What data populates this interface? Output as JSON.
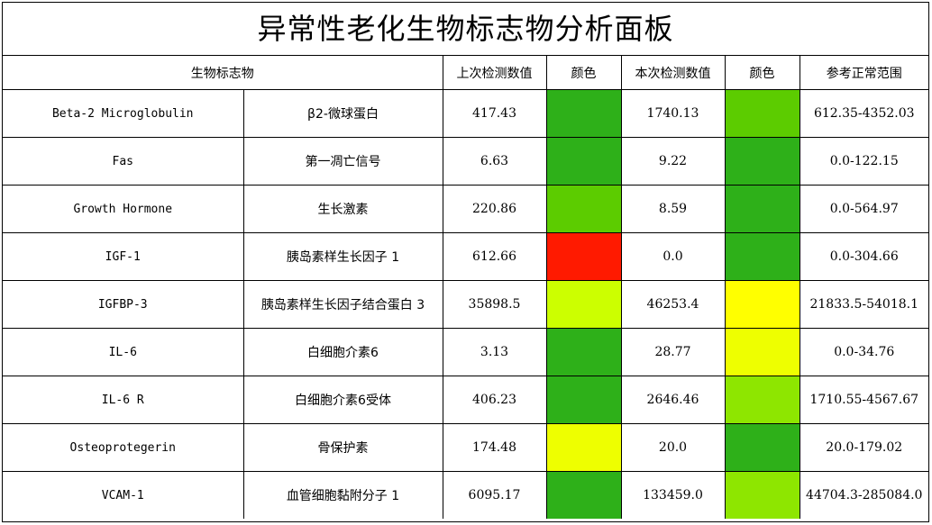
{
  "title": "异常性老化生物标志物分析面板",
  "headers": {
    "biomarker": "生物标志物",
    "previous_value": "上次检测数值",
    "previous_color": "颜色",
    "current_value": "本次检测数值",
    "current_color": "颜色",
    "reference_range": "参考正常范围"
  },
  "rows": [
    {
      "name_en": "Beta-2 Microglobulin",
      "name_cn": "β2-微球蛋白",
      "prev": "417.43",
      "prev_color": "#2eb019",
      "curr": "1740.13",
      "curr_color": "#5ccc00",
      "range": "612.35-4352.03"
    },
    {
      "name_en": "Fas",
      "name_cn": "第一凋亡信号",
      "prev": "6.63",
      "prev_color": "#2eb019",
      "curr": "9.22",
      "curr_color": "#2eb019",
      "range": "0.0-122.15"
    },
    {
      "name_en": "Growth Hormone",
      "name_cn": "生长激素",
      "prev": "220.86",
      "prev_color": "#5ccc00",
      "curr": "8.59",
      "curr_color": "#2eb019",
      "range": "0.0-564.97"
    },
    {
      "name_en": "IGF-1",
      "name_cn": "胰岛素样生长因子 1",
      "prev": "612.66",
      "prev_color": "#ff1a00",
      "curr": "0.0",
      "curr_color": "#2eb019",
      "range": "0.0-304.66"
    },
    {
      "name_en": "IGFBP-3",
      "name_cn": "胰岛素样生长因子结合蛋白 3",
      "prev": "35898.5",
      "prev_color": "#ccff00",
      "curr": "46253.4",
      "curr_color": "#ffff00",
      "range": "21833.5-54018.1"
    },
    {
      "name_en": "IL-6",
      "name_cn": "白细胞介素6",
      "prev": "3.13",
      "prev_color": "#2eb019",
      "curr": "28.77",
      "curr_color": "#eeff00",
      "range": "0.0-34.76"
    },
    {
      "name_en": "IL-6 R",
      "name_cn": "白细胞介素6受体",
      "prev": "406.23",
      "prev_color": "#2eb019",
      "curr": "2646.46",
      "curr_color": "#8ee600",
      "range": "1710.55-4567.67"
    },
    {
      "name_en": "Osteoprotegerin",
      "name_cn": "骨保护素",
      "prev": "174.48",
      "prev_color": "#eeff00",
      "curr": "20.0",
      "curr_color": "#2eb019",
      "range": "20.0-179.02"
    },
    {
      "name_en": "VCAM-1",
      "name_cn": "血管细胞黏附分子 1",
      "prev": "6095.17",
      "prev_color": "#2eb019",
      "curr": "133459.0",
      "curr_color": "#8ee600",
      "range": "44704.3-285084.0"
    }
  ]
}
